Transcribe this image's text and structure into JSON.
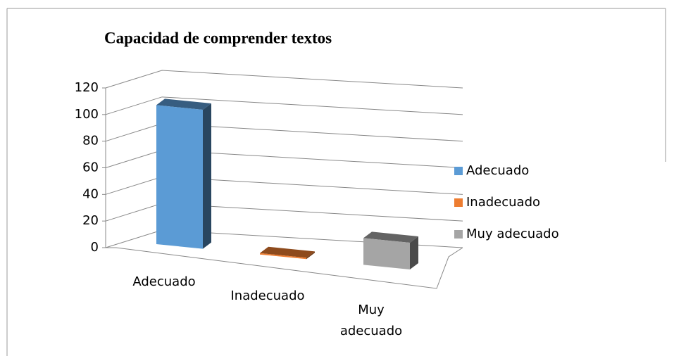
{
  "chart_data": {
    "type": "bar3d",
    "title": "Capacidad de comprender textos",
    "categories": [
      "Adecuado",
      "Inadecuado",
      "Muy adecuado"
    ],
    "values": [
      104,
      1,
      20
    ],
    "colors": [
      "#5b9bd5",
      "#ed7d31",
      "#a5a5a5"
    ],
    "ylim": [
      0,
      120
    ],
    "yticks": [
      0,
      20,
      40,
      60,
      80,
      100,
      120
    ],
    "grid": true,
    "legend": "right"
  }
}
